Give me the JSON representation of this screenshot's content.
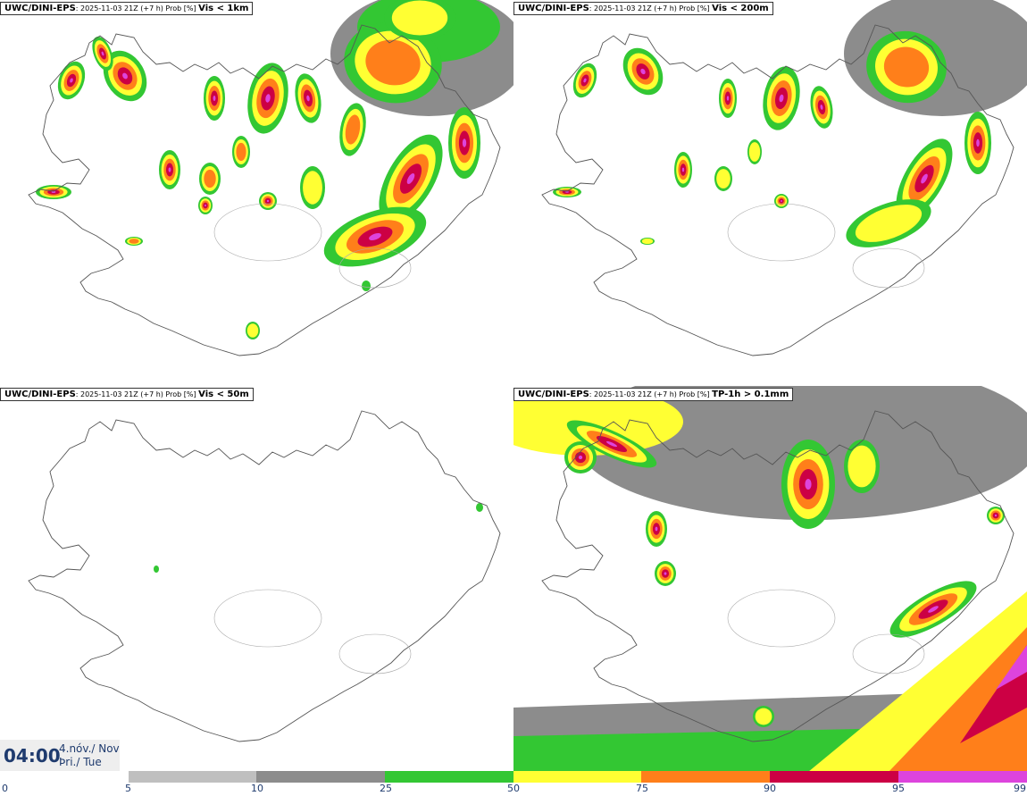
{
  "colors": {
    "p5": "#bfbfbf",
    "p10": "#8c8c8c",
    "p25": "#33c733",
    "p50": "#ffff33",
    "p75": "#ff7f1a",
    "p90": "#cc0044",
    "p95": "#dd44dd",
    "p99": "#f0b6f0",
    "coast": "#555555"
  },
  "panels": [
    {
      "model": "UWC/DINI-EPS",
      "meta": ": 2025-11-03 21Z (+7 h) Prob [%] ",
      "variable": "Vis < 1km"
    },
    {
      "model": "UWC/DINI-EPS",
      "meta": ": 2025-11-03 21Z (+7 h) Prob [%] ",
      "variable": "Vis < 200m"
    },
    {
      "model": "UWC/DINI-EPS",
      "meta": ": 2025-11-03 21Z (+7 h) Prob [%] ",
      "variable": "Vis < 50m"
    },
    {
      "model": "UWC/DINI-EPS",
      "meta": ": 2025-11-03 21Z (+7 h) Prob [%] ",
      "variable": "TP-1h > 0.1mm"
    }
  ],
  "time": {
    "hour": "04:00",
    "date_line1": "4.nóv./ Nov",
    "date_line2": "Þri./ Tue"
  },
  "legend": {
    "labels": [
      "0",
      "5",
      "10",
      "25",
      "50",
      "75",
      "90",
      "95",
      "99"
    ]
  }
}
